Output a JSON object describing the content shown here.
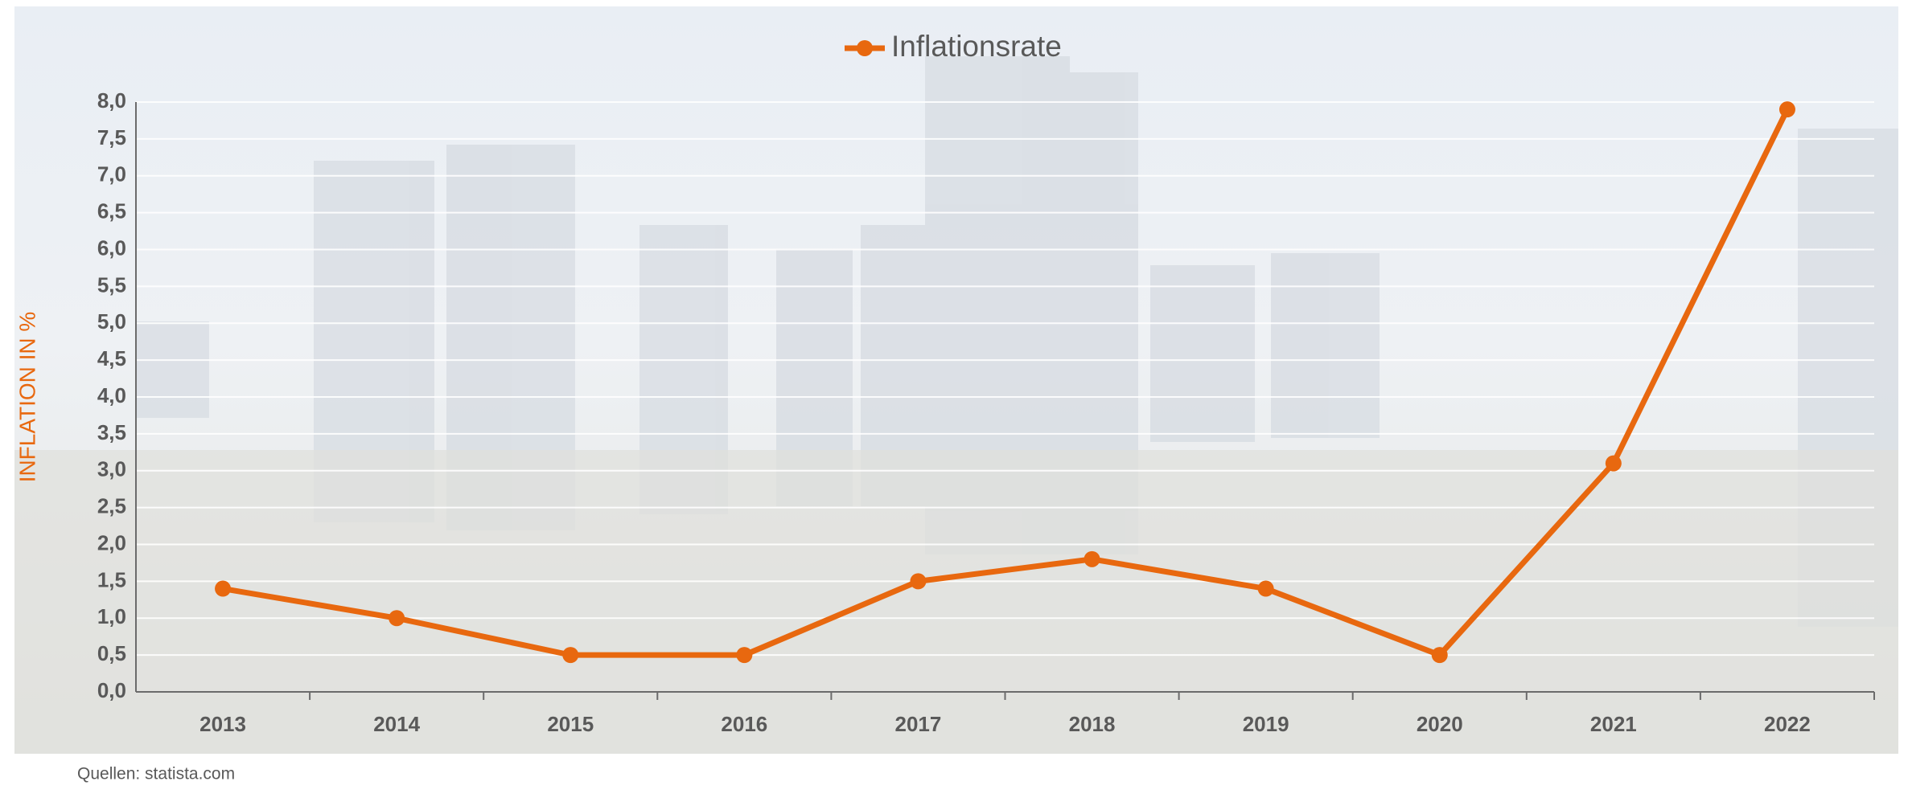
{
  "chart_data": {
    "type": "line",
    "legend": "Inflationsrate",
    "y_label": "INFLATION IN %",
    "source": "Quellen: statista.com",
    "categories": [
      "2013",
      "2014",
      "2015",
      "2016",
      "2017",
      "2018",
      "2019",
      "2020",
      "2021",
      "2022"
    ],
    "series": [
      {
        "name": "Inflationsrate",
        "color": "#e8680f",
        "values": [
          1.4,
          1.0,
          0.5,
          0.5,
          1.5,
          1.8,
          1.4,
          0.5,
          3.1,
          7.9
        ]
      }
    ],
    "ylim": [
      0,
      8
    ],
    "yticks": [
      {
        "value": 0,
        "label": "0,0"
      },
      {
        "value": 0.5,
        "label": "0,5"
      },
      {
        "value": 1,
        "label": "1,0"
      },
      {
        "value": 1.5,
        "label": "1,5"
      },
      {
        "value": 2,
        "label": "2,0"
      },
      {
        "value": 2.5,
        "label": "2,5"
      },
      {
        "value": 3,
        "label": "3,0"
      },
      {
        "value": 3.5,
        "label": "3,5"
      },
      {
        "value": 4,
        "label": "4,0"
      },
      {
        "value": 4.5,
        "label": "4,5"
      },
      {
        "value": 5,
        "label": "5,0"
      },
      {
        "value": 5.5,
        "label": "5,5"
      },
      {
        "value": 6,
        "label": "6,0"
      },
      {
        "value": 6.5,
        "label": "6,5"
      },
      {
        "value": 7,
        "label": "7,0"
      },
      {
        "value": 7.5,
        "label": "7,5"
      },
      {
        "value": 8,
        "label": "8,0"
      }
    ],
    "grid": true
  }
}
